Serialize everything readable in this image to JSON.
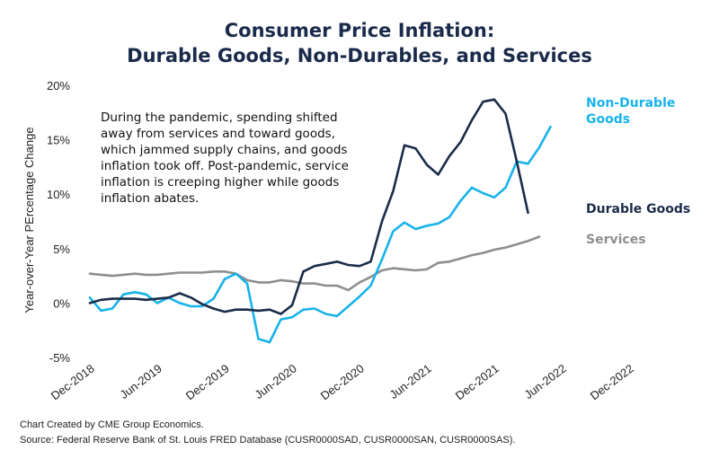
{
  "chart_data": {
    "type": "line",
    "title_lines": [
      "Consumer Price Inflation:",
      "Durable Goods, Non-Durables, and Services"
    ],
    "ylabel": "Year-over-Year PErcentage Change",
    "xlabel": "",
    "ylim": [
      -5,
      20
    ],
    "yticks": [
      -5,
      0,
      5,
      10,
      15,
      20
    ],
    "ytick_labels": [
      "-5%",
      "0%",
      "5%",
      "10%",
      "15%",
      "20%"
    ],
    "xlim": [
      "2018-12",
      "2022-12"
    ],
    "xtick_labels": [
      "Dec-2018",
      "Jun-2019",
      "Dec-2019",
      "Jun-2020",
      "Dec-2020",
      "Jun-2021",
      "Dec-2021",
      "Jun-2022",
      "Dec-2022"
    ],
    "grid": false,
    "annotation": [
      "During the pandemic, spending shifted",
      "away from services and toward goods,",
      "which jammed supply chains, and goods",
      "inflation took off.  Post-pandemic, service",
      "inflation is creeping higher while goods",
      "inflation abates."
    ],
    "series": [
      {
        "name": "Durable Goods",
        "label_lines": [
          "Durable Goods"
        ],
        "color": "#1b2c4a",
        "x": [
          "2018-12",
          "2019-01",
          "2019-02",
          "2019-03",
          "2019-04",
          "2019-05",
          "2019-06",
          "2019-07",
          "2019-08",
          "2019-09",
          "2019-10",
          "2019-11",
          "2019-12",
          "2020-01",
          "2020-02",
          "2020-03",
          "2020-04",
          "2020-05",
          "2020-06",
          "2020-07",
          "2020-08",
          "2020-09",
          "2020-10",
          "2020-11",
          "2020-12",
          "2021-01",
          "2021-02",
          "2021-03",
          "2021-04",
          "2021-05",
          "2021-06",
          "2021-07",
          "2021-08",
          "2021-09",
          "2021-10",
          "2021-11",
          "2021-12",
          "2022-01",
          "2022-02",
          "2022-03",
          "2022-04",
          "2022-05",
          "2022-06"
        ],
        "values": [
          0.0,
          0.3,
          0.4,
          0.4,
          0.4,
          0.3,
          0.4,
          0.5,
          0.9,
          0.5,
          -0.1,
          -0.5,
          -0.8,
          -0.6,
          -0.6,
          -0.7,
          -0.6,
          -1.0,
          -0.2,
          2.9,
          3.4,
          3.6,
          3.8,
          3.5,
          3.4,
          3.8,
          7.5,
          10.3,
          14.5,
          14.2,
          12.7,
          11.8,
          13.5,
          14.8,
          16.8,
          18.5,
          18.7,
          17.4,
          13.0,
          8.3,
          null,
          null,
          null
        ]
      },
      {
        "name": "Non-Durable Goods",
        "label_lines": [
          "Non-Durable",
          "Goods"
        ],
        "color": "#17b3eb",
        "x": [
          "2018-12",
          "2019-01",
          "2019-02",
          "2019-03",
          "2019-04",
          "2019-05",
          "2019-06",
          "2019-07",
          "2019-08",
          "2019-09",
          "2019-10",
          "2019-11",
          "2019-12",
          "2020-01",
          "2020-02",
          "2020-03",
          "2020-04",
          "2020-05",
          "2020-06",
          "2020-07",
          "2020-08",
          "2020-09",
          "2020-10",
          "2020-11",
          "2020-12",
          "2021-01",
          "2021-02",
          "2021-03",
          "2021-04",
          "2021-05",
          "2021-06",
          "2021-07",
          "2021-08",
          "2021-09",
          "2021-10",
          "2021-11",
          "2021-12",
          "2022-01",
          "2022-02",
          "2022-03",
          "2022-04",
          "2022-05",
          "2022-06"
        ],
        "values": [
          0.5,
          -0.7,
          -0.5,
          0.8,
          1.0,
          0.8,
          0.0,
          0.5,
          0.0,
          -0.3,
          -0.3,
          0.4,
          2.2,
          2.7,
          1.8,
          -3.3,
          -3.6,
          -1.5,
          -1.3,
          -0.6,
          -0.5,
          -1.0,
          -1.2,
          -0.3,
          0.6,
          1.6,
          4.0,
          6.6,
          7.4,
          6.8,
          7.1,
          7.3,
          7.9,
          9.4,
          10.6,
          10.1,
          9.7,
          10.6,
          13.0,
          12.8,
          14.3,
          16.2,
          null
        ]
      },
      {
        "name": "Services",
        "label_lines": [
          "Services"
        ],
        "color": "#8e8e8e",
        "x": [
          "2018-12",
          "2019-01",
          "2019-02",
          "2019-03",
          "2019-04",
          "2019-05",
          "2019-06",
          "2019-07",
          "2019-08",
          "2019-09",
          "2019-10",
          "2019-11",
          "2019-12",
          "2020-01",
          "2020-02",
          "2020-03",
          "2020-04",
          "2020-05",
          "2020-06",
          "2020-07",
          "2020-08",
          "2020-09",
          "2020-10",
          "2020-11",
          "2020-12",
          "2021-01",
          "2021-02",
          "2021-03",
          "2021-04",
          "2021-05",
          "2021-06",
          "2021-07",
          "2021-08",
          "2021-09",
          "2021-10",
          "2021-11",
          "2021-12",
          "2022-01",
          "2022-02",
          "2022-03",
          "2022-04",
          "2022-05",
          "2022-06"
        ],
        "values": [
          2.7,
          2.6,
          2.5,
          2.6,
          2.7,
          2.6,
          2.6,
          2.7,
          2.8,
          2.8,
          2.8,
          2.9,
          2.9,
          2.7,
          2.1,
          1.9,
          1.9,
          2.1,
          2.0,
          1.8,
          1.8,
          1.6,
          1.6,
          1.2,
          1.9,
          2.4,
          3.0,
          3.2,
          3.1,
          3.0,
          3.1,
          3.7,
          3.8,
          4.1,
          4.4,
          4.6,
          4.9,
          5.1,
          5.4,
          5.7,
          6.1,
          null,
          null
        ]
      }
    ]
  },
  "footer": {
    "line1": "Chart Created by CME Group Economics.",
    "line2": "Source: Federal Reserve Bank of St. Louis FRED Database (CUSR0000SAD, CUSR0000SAN, CUSR0000SAS)."
  }
}
